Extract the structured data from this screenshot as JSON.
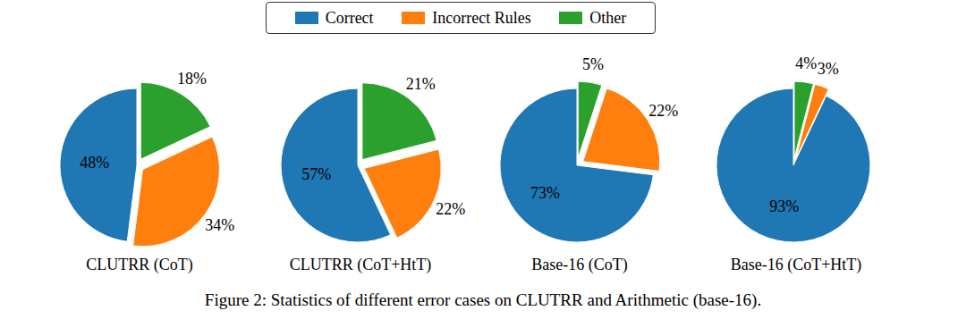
{
  "chart_data": [
    {
      "type": "pie",
      "title": "CLUTRR (CoT)",
      "categories": [
        "Correct",
        "Incorrect Rules",
        "Other"
      ],
      "values": [
        48,
        34,
        18
      ],
      "value_labels": [
        "48%",
        "34%",
        "18%"
      ],
      "colors": [
        "#1f77b4",
        "#ff7f0e",
        "#2ca02c"
      ],
      "legend": "top"
    },
    {
      "type": "pie",
      "title": "CLUTRR (CoT+HtT)",
      "categories": [
        "Correct",
        "Incorrect Rules",
        "Other"
      ],
      "values": [
        57,
        22,
        21
      ],
      "value_labels": [
        "57%",
        "22%",
        "21%"
      ],
      "colors": [
        "#1f77b4",
        "#ff7f0e",
        "#2ca02c"
      ],
      "legend": "top"
    },
    {
      "type": "pie",
      "title": "Base-16 (CoT)",
      "categories": [
        "Correct",
        "Incorrect Rules",
        "Other"
      ],
      "values": [
        73,
        22,
        5
      ],
      "value_labels": [
        "73%",
        "22%",
        "5%"
      ],
      "colors": [
        "#1f77b4",
        "#ff7f0e",
        "#2ca02c"
      ],
      "legend": "top"
    },
    {
      "type": "pie",
      "title": "Base-16 (CoT+HtT)",
      "categories": [
        "Correct",
        "Incorrect Rules",
        "Other"
      ],
      "values": [
        93,
        3,
        4
      ],
      "value_labels": [
        "93%",
        "3%",
        "4%"
      ],
      "colors": [
        "#1f77b4",
        "#ff7f0e",
        "#2ca02c"
      ],
      "legend": "top"
    }
  ],
  "caption": "Figure 2: Statistics of different error cases on CLUTRR and Arithmetic (base-16)."
}
